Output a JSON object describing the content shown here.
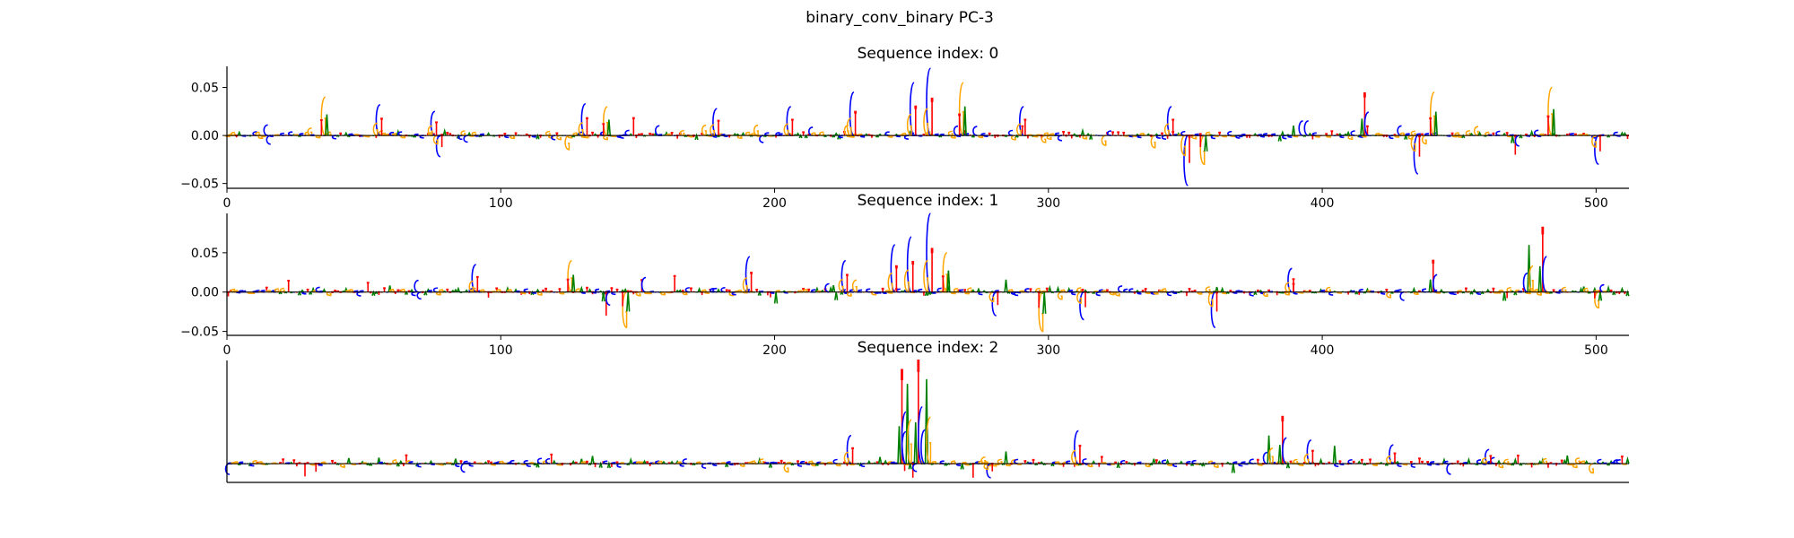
{
  "figure": {
    "suptitle": "binary_conv_binary PC-3"
  },
  "colors": {
    "A": "#008000",
    "C": "#0000ff",
    "G": "#ffa500",
    "T": "#ff0000",
    "axis": "#000000"
  },
  "chart_data": [
    {
      "type": "sequence-logo",
      "title": "Sequence index: 0",
      "xlim": [
        0,
        512
      ],
      "ylim": [
        -0.055,
        0.072
      ],
      "xticks": [
        0,
        100,
        200,
        300,
        400,
        500
      ],
      "yticks": [
        0.05,
        0.0,
        -0.05
      ],
      "ytick_labels": [
        "0.05",
        "0.00",
        "−0.05"
      ],
      "xlabel": "",
      "ylabel": "",
      "peaks": [
        {
          "x": 35,
          "value": 0.04,
          "base": "G"
        },
        {
          "x": 55,
          "value": 0.032,
          "base": "C"
        },
        {
          "x": 75,
          "value": 0.025,
          "base": "C"
        },
        {
          "x": 77,
          "value": -0.022,
          "base": "C"
        },
        {
          "x": 130,
          "value": 0.033,
          "base": "C"
        },
        {
          "x": 138,
          "value": 0.03,
          "base": "G"
        },
        {
          "x": 178,
          "value": 0.028,
          "base": "C"
        },
        {
          "x": 205,
          "value": 0.03,
          "base": "C"
        },
        {
          "x": 228,
          "value": 0.045,
          "base": "C"
        },
        {
          "x": 250,
          "value": 0.055,
          "base": "C"
        },
        {
          "x": 256,
          "value": 0.07,
          "base": "C"
        },
        {
          "x": 268,
          "value": 0.055,
          "base": "G"
        },
        {
          "x": 290,
          "value": 0.03,
          "base": "C"
        },
        {
          "x": 344,
          "value": 0.03,
          "base": "C"
        },
        {
          "x": 350,
          "value": -0.052,
          "base": "C"
        },
        {
          "x": 356,
          "value": -0.03,
          "base": "G"
        },
        {
          "x": 415,
          "value": 0.044,
          "base": "T"
        },
        {
          "x": 440,
          "value": 0.045,
          "base": "G"
        },
        {
          "x": 434,
          "value": -0.04,
          "base": "C"
        },
        {
          "x": 470,
          "value": -0.02,
          "base": "T"
        },
        {
          "x": 483,
          "value": 0.05,
          "base": "G"
        },
        {
          "x": 500,
          "value": -0.03,
          "base": "C"
        }
      ]
    },
    {
      "type": "sequence-logo",
      "title": "Sequence index: 1",
      "xlim": [
        0,
        512
      ],
      "ylim": [
        -0.055,
        0.1
      ],
      "xticks": [
        0,
        100,
        200,
        300,
        400,
        500
      ],
      "yticks": [
        0.05,
        0.0,
        -0.05
      ],
      "ytick_labels": [
        "0.05",
        "0.00",
        "−0.05"
      ],
      "xlabel": "",
      "ylabel": "",
      "peaks": [
        {
          "x": 90,
          "value": 0.035,
          "base": "C"
        },
        {
          "x": 125,
          "value": 0.04,
          "base": "G"
        },
        {
          "x": 138,
          "value": -0.03,
          "base": "T"
        },
        {
          "x": 145,
          "value": -0.045,
          "base": "G"
        },
        {
          "x": 190,
          "value": 0.045,
          "base": "C"
        },
        {
          "x": 225,
          "value": 0.04,
          "base": "C"
        },
        {
          "x": 243,
          "value": 0.06,
          "base": "C"
        },
        {
          "x": 249,
          "value": 0.07,
          "base": "C"
        },
        {
          "x": 256,
          "value": 0.1,
          "base": "C"
        },
        {
          "x": 262,
          "value": 0.05,
          "base": "G"
        },
        {
          "x": 280,
          "value": -0.03,
          "base": "C"
        },
        {
          "x": 297,
          "value": -0.05,
          "base": "G"
        },
        {
          "x": 312,
          "value": -0.035,
          "base": "C"
        },
        {
          "x": 360,
          "value": -0.045,
          "base": "C"
        },
        {
          "x": 388,
          "value": 0.03,
          "base": "C"
        },
        {
          "x": 440,
          "value": 0.04,
          "base": "T"
        },
        {
          "x": 480,
          "value": 0.082,
          "base": "T"
        },
        {
          "x": 475,
          "value": 0.06,
          "base": "A"
        },
        {
          "x": 500,
          "value": -0.02,
          "base": "G"
        }
      ]
    },
    {
      "type": "sequence-logo",
      "title": "Sequence index: 2",
      "xlim": [
        0,
        512
      ],
      "ylim": [
        -0.02,
        0.11
      ],
      "xticks": [],
      "yticks": [],
      "xlabel": "",
      "ylabel": "",
      "peaks": [
        {
          "x": 227,
          "value": 0.03,
          "base": "C"
        },
        {
          "x": 246,
          "value": 0.1,
          "base": "T"
        },
        {
          "x": 248,
          "value": 0.085,
          "base": "A"
        },
        {
          "x": 252,
          "value": 0.11,
          "base": "T"
        },
        {
          "x": 255,
          "value": 0.09,
          "base": "A"
        },
        {
          "x": 250,
          "value": -0.015,
          "base": "T"
        },
        {
          "x": 278,
          "value": -0.015,
          "base": "C"
        },
        {
          "x": 310,
          "value": 0.035,
          "base": "C"
        },
        {
          "x": 385,
          "value": 0.05,
          "base": "T"
        },
        {
          "x": 380,
          "value": 0.03,
          "base": "A"
        },
        {
          "x": 395,
          "value": 0.025,
          "base": "C"
        },
        {
          "x": 425,
          "value": 0.02,
          "base": "C"
        },
        {
          "x": 460,
          "value": 0.015,
          "base": "C"
        }
      ]
    }
  ]
}
